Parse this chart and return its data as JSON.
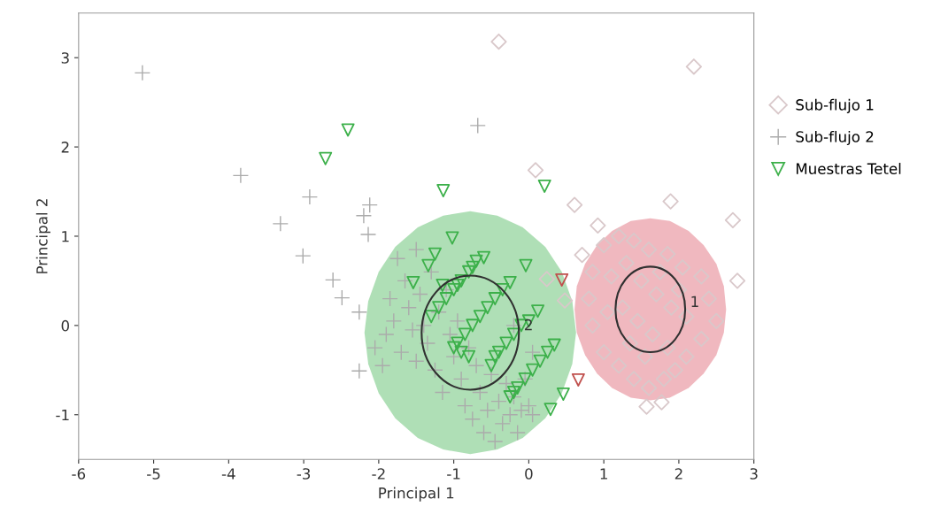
{
  "chart_data": {
    "type": "scatter",
    "xlabel": "Principal 1",
    "ylabel": "Principal 2",
    "xlim": [
      -6,
      3
    ],
    "ylim": [
      -1.5,
      3.5
    ],
    "xticks": [
      -6,
      -5,
      -4,
      -3,
      -2,
      -1,
      0,
      1,
      2,
      3
    ],
    "yticks": [
      -1,
      0,
      1,
      2,
      3
    ],
    "grid": false,
    "legend": "right",
    "annotations": [
      "2",
      "1"
    ],
    "series": [
      {
        "type": "area",
        "color": "#a6dbae",
        "x": [
          0.63,
          0.58,
          0.44,
          0.22,
          -0.08,
          -0.42,
          -0.78,
          -1.14,
          -1.48,
          -1.78,
          -2.0,
          -2.14,
          -2.19,
          -2.14,
          -2.0,
          -1.78,
          -1.48,
          -1.14,
          -0.78,
          -0.42,
          -0.08,
          0.22,
          0.44,
          0.58
        ],
        "values": [
          -0.08,
          0.27,
          0.6,
          0.88,
          1.1,
          1.23,
          1.28,
          1.23,
          1.1,
          0.88,
          0.6,
          0.27,
          -0.08,
          -0.43,
          -0.76,
          -1.04,
          -1.26,
          -1.39,
          -1.44,
          -1.39,
          -1.26,
          -1.04,
          -0.76,
          -0.43
        ]
      },
      {
        "type": "area",
        "color": "#eeb0b8",
        "x": [
          2.63,
          2.6,
          2.5,
          2.33,
          2.13,
          1.88,
          1.62,
          1.36,
          1.11,
          0.91,
          0.75,
          0.64,
          0.61,
          0.64,
          0.75,
          0.91,
          1.11,
          1.36,
          1.62,
          1.88,
          2.13,
          2.33,
          2.5,
          2.6
        ],
        "values": [
          0.18,
          0.44,
          0.69,
          0.9,
          1.06,
          1.17,
          1.2,
          1.17,
          1.06,
          0.9,
          0.69,
          0.44,
          0.18,
          -0.08,
          -0.33,
          -0.54,
          -0.7,
          -0.81,
          -0.84,
          -0.81,
          -0.7,
          -0.54,
          -0.33,
          -0.08
        ]
      },
      {
        "name": "Sub-flujo 1",
        "color": "#d9c8ca",
        "marker": "diamond",
        "x": [
          -0.4,
          2.2,
          0.09,
          0.61,
          0.92,
          1.89,
          2.72,
          2.78,
          0.24,
          0.71,
          0.48,
          1.57,
          1.77,
          0.85,
          1.0,
          1.2,
          1.4,
          1.6,
          1.85,
          2.05,
          2.3,
          2.4,
          2.5,
          2.3,
          2.1,
          1.95,
          1.8,
          1.6,
          1.4,
          1.2,
          1.0,
          0.85,
          0.8,
          1.1,
          1.3,
          1.5,
          1.7,
          1.9,
          2.1,
          1.25,
          1.45,
          1.65,
          1.85,
          1.05,
          1.35,
          1.55,
          2.0,
          1.75
        ],
        "values": [
          3.18,
          2.9,
          1.74,
          1.35,
          1.12,
          1.39,
          1.18,
          0.5,
          0.52,
          0.79,
          0.28,
          -0.91,
          -0.86,
          0.6,
          0.9,
          1.0,
          0.95,
          0.85,
          0.8,
          0.65,
          0.55,
          0.3,
          0.05,
          -0.15,
          -0.35,
          -0.5,
          -0.6,
          -0.7,
          -0.6,
          -0.45,
          -0.3,
          0.0,
          0.3,
          0.55,
          0.7,
          0.5,
          0.35,
          0.2,
          0.1,
          0.2,
          0.05,
          -0.1,
          -0.25,
          0.15,
          -0.2,
          -0.35,
          0.4,
          0.6
        ]
      },
      {
        "name": "Sub-flujo 2",
        "color": "#ababab",
        "marker": "cross",
        "x": [
          -5.15,
          -3.84,
          -2.92,
          -3.31,
          -3.01,
          -2.61,
          -2.49,
          -2.26,
          -2.26,
          -2.12,
          -2.2,
          -2.14,
          -0.68,
          -2.05,
          -1.95,
          -1.9,
          -1.85,
          -1.8,
          -1.7,
          -1.65,
          -1.6,
          -1.55,
          -1.5,
          -1.45,
          -1.4,
          -1.35,
          -1.3,
          -1.25,
          -1.2,
          -1.15,
          -1.1,
          -1.05,
          -1.0,
          -0.95,
          -0.9,
          -0.85,
          -0.8,
          -0.75,
          -0.7,
          -0.65,
          -0.6,
          -0.55,
          -0.5,
          -0.45,
          -0.4,
          -0.35,
          -0.3,
          -0.25,
          -0.2,
          -0.15,
          -0.1,
          0.0,
          -0.05,
          -1.75,
          -1.5,
          -0.2,
          0.05,
          0.05
        ],
        "values": [
          2.83,
          1.68,
          1.44,
          1.14,
          0.78,
          0.51,
          0.31,
          0.15,
          -0.51,
          1.35,
          1.23,
          1.02,
          2.24,
          -0.25,
          -0.45,
          -0.1,
          0.3,
          0.05,
          -0.3,
          0.5,
          0.2,
          -0.05,
          -0.4,
          0.35,
          0.0,
          -0.2,
          0.6,
          -0.5,
          0.15,
          -0.75,
          0.4,
          -0.1,
          -0.35,
          0.05,
          -0.6,
          -0.9,
          -0.25,
          -1.05,
          -0.45,
          -0.75,
          -1.2,
          -0.95,
          -0.55,
          -1.3,
          -0.85,
          -1.1,
          -0.65,
          -1.0,
          -0.8,
          -1.2,
          -0.95,
          -0.9,
          -0.6,
          0.75,
          0.85,
          0.0,
          -0.3,
          -1.0
        ]
      },
      {
        "name": "Muestras Tetel",
        "color": "#3cb04a",
        "marker": "triangle",
        "x": [
          -2.41,
          -2.71,
          -1.14,
          0.21,
          -1.02,
          -1.54,
          -0.04,
          0.12,
          0.34,
          0.46,
          0.29,
          -0.6,
          -1.34,
          -1.25,
          -1.2,
          -1.1,
          -1.0,
          -0.95,
          -0.9,
          -0.8,
          -0.75,
          -0.7,
          -1.3,
          -1.15,
          -0.95,
          -0.85,
          -0.75,
          -0.65,
          -0.55,
          -0.45,
          -0.35,
          -0.25,
          -0.9,
          -0.5,
          -0.4,
          -0.3,
          -0.2,
          -0.1,
          0.0,
          -0.45,
          -0.25,
          -0.15,
          -0.05,
          0.05,
          0.15,
          0.25,
          -0.2,
          -1.0,
          -0.8,
          0.44,
          0.66
        ],
        "values": [
          2.19,
          1.87,
          1.51,
          1.56,
          0.98,
          0.48,
          0.67,
          0.16,
          -0.22,
          -0.77,
          -0.94,
          0.76,
          0.67,
          0.8,
          0.2,
          0.3,
          0.4,
          0.45,
          0.5,
          0.6,
          0.65,
          0.72,
          0.1,
          0.45,
          -0.2,
          -0.1,
          0.0,
          0.1,
          0.2,
          0.3,
          0.4,
          0.48,
          -0.3,
          -0.45,
          -0.3,
          -0.2,
          -0.1,
          0.0,
          0.05,
          -0.35,
          -0.8,
          -0.7,
          -0.6,
          -0.5,
          -0.4,
          -0.3,
          -0.75,
          -0.25,
          -0.35,
          0.51,
          -0.61
        ],
        "colors": [
          "#3cb04a",
          "#3cb04a",
          "#3cb04a",
          "#3cb04a",
          "#3cb04a",
          "#3cb04a",
          "#3cb04a",
          "#3cb04a",
          "#3cb04a",
          "#3cb04a",
          "#3cb04a",
          "#3cb04a",
          "#3cb04a",
          "#3cb04a",
          "#3cb04a",
          "#3cb04a",
          "#3cb04a",
          "#3cb04a",
          "#3cb04a",
          "#3cb04a",
          "#3cb04a",
          "#3cb04a",
          "#3cb04a",
          "#3cb04a",
          "#3cb04a",
          "#3cb04a",
          "#3cb04a",
          "#3cb04a",
          "#3cb04a",
          "#3cb04a",
          "#3cb04a",
          "#3cb04a",
          "#3cb04a",
          "#3cb04a",
          "#3cb04a",
          "#3cb04a",
          "#3cb04a",
          "#3cb04a",
          "#3cb04a",
          "#3cb04a",
          "#3cb04a",
          "#3cb04a",
          "#3cb04a",
          "#3cb04a",
          "#3cb04a",
          "#3cb04a",
          "#3cb04a",
          "#3cb04a",
          "#3cb04a",
          "#c0504d",
          "#c0504d"
        ]
      }
    ]
  }
}
